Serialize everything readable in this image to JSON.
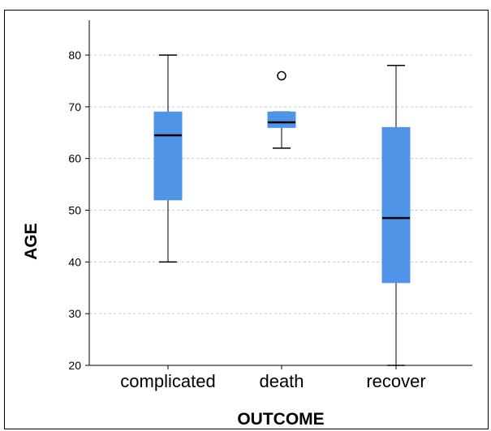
{
  "chart_data": {
    "type": "boxplot",
    "xlabel": "OUTCOME",
    "ylabel": "AGE",
    "ylim": [
      20,
      86
    ],
    "yticks": [
      20,
      30,
      40,
      50,
      60,
      70,
      80
    ],
    "grid": true,
    "box_color": "#4f94e6",
    "categories": [
      "complicated",
      "death",
      "recover"
    ],
    "boxes": [
      {
        "category": "complicated",
        "whisker_low": 40,
        "q1": 52,
        "median": 64.5,
        "q3": 69,
        "whisker_high": 80,
        "outliers": []
      },
      {
        "category": "death",
        "whisker_low": 62,
        "q1": 66,
        "median": 67,
        "q3": 69,
        "whisker_high": 69,
        "outliers": [
          76
        ]
      },
      {
        "category": "recover",
        "whisker_low": 20,
        "q1": 36,
        "median": 48.5,
        "q3": 66,
        "whisker_high": 78,
        "outliers": []
      }
    ]
  }
}
